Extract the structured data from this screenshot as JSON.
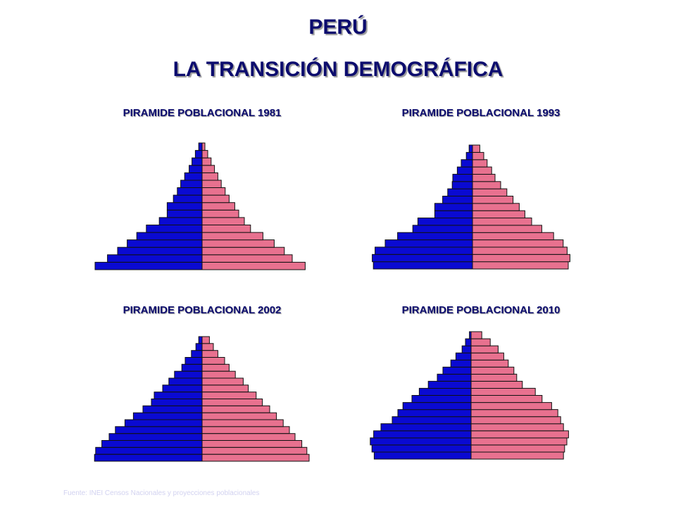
{
  "header": {
    "title": "PERÚ",
    "subtitle": "LA TRANSICIÓN DEMOGRÁFICA"
  },
  "colors": {
    "male": "#0a0ad2",
    "female": "#e8718f",
    "outline": "#111111",
    "title": "#0c0c6e"
  },
  "chart_data": [
    {
      "type": "bar",
      "title": "PIRAMIDE POBLACIONAL 1981",
      "orientation": "horizontal-population-pyramid",
      "series": [
        {
          "values": [
            19.0,
            16.8,
            15.0,
            13.3,
            11.6,
            9.9,
            7.6,
            6.2,
            6.2,
            5.1,
            4.4,
            3.8,
            3.1,
            2.3,
            1.8,
            1.2,
            0.6
          ]
        },
        {
          "values": [
            18.3,
            16.0,
            14.6,
            12.8,
            10.8,
            8.6,
            7.5,
            6.5,
            5.8,
            4.8,
            4.1,
            3.4,
            2.8,
            2.2,
            1.6,
            1.0,
            0.5
          ]
        }
      ]
    },
    {
      "type": "bar",
      "title": "PIRAMIDE POBLACIONAL 1993",
      "orientation": "horizontal-population-pyramid",
      "series": [
        {
          "values": [
            17.6,
            17.8,
            17.3,
            15.5,
            13.3,
            10.6,
            9.7,
            6.7,
            6.7,
            5.3,
            4.4,
            3.6,
            3.5,
            2.7,
            2.0,
            1.1,
            0.6
          ]
        },
        {
          "values": [
            17.0,
            17.3,
            16.8,
            16.1,
            14.4,
            12.3,
            10.5,
            9.3,
            8.3,
            7.2,
            6.1,
            5.0,
            4.0,
            3.4,
            2.6,
            2.0,
            1.3
          ]
        }
      ]
    },
    {
      "type": "bar",
      "title": "PIRAMIDE POBLACIONAL 2002",
      "orientation": "horizontal-population-pyramid",
      "series": [
        {
          "values": [
            19.1,
            18.9,
            17.8,
            16.5,
            15.4,
            13.7,
            12.2,
            10.5,
            9.0,
            8.5,
            7.0,
            5.9,
            4.9,
            3.6,
            3.0,
            1.9,
            1.1,
            0.6
          ]
        },
        {
          "values": [
            19.0,
            18.6,
            17.7,
            16.5,
            15.5,
            14.4,
            13.2,
            12.0,
            10.7,
            9.6,
            8.2,
            7.3,
            5.9,
            4.8,
            4.0,
            2.8,
            2.0,
            1.3
          ]
        }
      ]
    },
    {
      "type": "bar",
      "title": "PIRAMIDE POBLACIONAL 2010",
      "orientation": "horizontal-population-pyramid",
      "series": [
        {
          "values": [
            17.2,
            17.6,
            17.9,
            17.3,
            16.0,
            14.0,
            13.0,
            12.1,
            10.5,
            9.2,
            7.6,
            6.0,
            5.0,
            3.6,
            2.7,
            1.6,
            1.0,
            0.3
          ]
        },
        {
          "values": [
            16.4,
            16.6,
            17.0,
            17.3,
            16.4,
            15.9,
            15.4,
            14.3,
            12.6,
            11.4,
            9.1,
            8.1,
            7.6,
            6.6,
            5.8,
            4.8,
            3.4,
            1.9
          ]
        }
      ]
    }
  ],
  "footer": {
    "source": "Fuente: INEI Censos Nacionales y proyecciones poblacionales"
  }
}
